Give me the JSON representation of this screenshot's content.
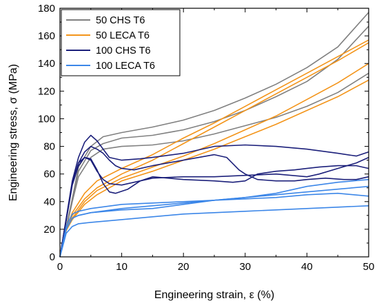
{
  "chart_data": {
    "type": "line",
    "xlabel": "Engineering strain, ε (%)",
    "ylabel": "Engineering stress, σ (MPa)",
    "xlim": [
      0,
      50
    ],
    "ylim": [
      0,
      180
    ],
    "xticks": [
      0,
      10,
      20,
      30,
      40,
      50
    ],
    "yticks": [
      0,
      20,
      40,
      60,
      80,
      100,
      120,
      140,
      160,
      180
    ],
    "grid": false,
    "legend_position": "top-left",
    "series": [
      {
        "name": "50 CHS T6",
        "color": "#808080",
        "curves": [
          [
            [
              0,
              0
            ],
            [
              2,
              42
            ],
            [
              3,
              65
            ],
            [
              5,
              80
            ],
            [
              7,
              87
            ],
            [
              10,
              90
            ],
            [
              15,
              94
            ],
            [
              20,
              99
            ],
            [
              25,
              106
            ],
            [
              30,
              115
            ],
            [
              35,
              125
            ],
            [
              40,
              137
            ],
            [
              45,
              152
            ],
            [
              50,
              177
            ]
          ],
          [
            [
              0,
              0
            ],
            [
              2,
              42
            ],
            [
              3,
              62
            ],
            [
              5,
              77
            ],
            [
              7,
              82
            ],
            [
              10,
              86
            ],
            [
              15,
              88
            ],
            [
              20,
              92
            ],
            [
              25,
              98
            ],
            [
              30,
              106
            ],
            [
              35,
              116
            ],
            [
              40,
              127
            ],
            [
              45,
              143
            ],
            [
              50,
              167
            ]
          ],
          [
            [
              0,
              0
            ],
            [
              2,
              40
            ],
            [
              3,
              58
            ],
            [
              5,
              72
            ],
            [
              7,
              78
            ],
            [
              10,
              80
            ],
            [
              15,
              81
            ],
            [
              20,
              84
            ],
            [
              25,
              89
            ],
            [
              30,
              95
            ],
            [
              35,
              101
            ],
            [
              40,
              109
            ],
            [
              45,
              119
            ],
            [
              50,
              133
            ]
          ]
        ]
      },
      {
        "name": "50 LECA T6",
        "color": "#f39419",
        "curves": [
          [
            [
              0,
              0
            ],
            [
              1,
              20
            ],
            [
              2,
              32
            ],
            [
              4,
              46
            ],
            [
              6,
              55
            ],
            [
              10,
              64
            ],
            [
              15,
              74
            ],
            [
              20,
              86
            ],
            [
              25,
              97
            ],
            [
              30,
              109
            ],
            [
              35,
              121
            ],
            [
              40,
              133
            ],
            [
              45,
              145
            ],
            [
              50,
              157
            ]
          ],
          [
            [
              0,
              0
            ],
            [
              1,
              20
            ],
            [
              2,
              30
            ],
            [
              4,
              42
            ],
            [
              6,
              50
            ],
            [
              10,
              60
            ],
            [
              15,
              70
            ],
            [
              20,
              82
            ],
            [
              25,
              94
            ],
            [
              30,
              106
            ],
            [
              35,
              118
            ],
            [
              40,
              130
            ],
            [
              45,
              142
            ],
            [
              50,
              155
            ]
          ],
          [
            [
              0,
              0
            ],
            [
              1,
              19
            ],
            [
              2,
              28
            ],
            [
              4,
              40
            ],
            [
              6,
              48
            ],
            [
              10,
              57
            ],
            [
              15,
              65
            ],
            [
              20,
              73
            ],
            [
              25,
              82
            ],
            [
              30,
              92
            ],
            [
              35,
              102
            ],
            [
              40,
              114
            ],
            [
              45,
              126
            ],
            [
              50,
              140
            ]
          ],
          [
            [
              0,
              0
            ],
            [
              1,
              19
            ],
            [
              2,
              27
            ],
            [
              4,
              38
            ],
            [
              6,
              45
            ],
            [
              10,
              55
            ],
            [
              15,
              62
            ],
            [
              20,
              70
            ],
            [
              25,
              78
            ],
            [
              30,
              87
            ],
            [
              35,
              96
            ],
            [
              40,
              106
            ],
            [
              45,
              116
            ],
            [
              50,
              128
            ]
          ]
        ]
      },
      {
        "name": "100 CHS T6",
        "color": "#1b1f7a",
        "curves": [
          [
            [
              0,
              0
            ],
            [
              2,
              55
            ],
            [
              3,
              72
            ],
            [
              4,
              83
            ],
            [
              5,
              88
            ],
            [
              6,
              84
            ],
            [
              7,
              78
            ],
            [
              8,
              72
            ],
            [
              10,
              70
            ],
            [
              13,
              71
            ],
            [
              15,
              72
            ],
            [
              20,
              75
            ],
            [
              25,
              80
            ],
            [
              30,
              81
            ],
            [
              35,
              80
            ],
            [
              40,
              78
            ],
            [
              45,
              75
            ],
            [
              48,
              73
            ],
            [
              50,
              76
            ]
          ],
          [
            [
              0,
              0
            ],
            [
              2,
              54
            ],
            [
              3,
              68
            ],
            [
              4,
              76
            ],
            [
              5,
              80
            ],
            [
              6,
              78
            ],
            [
              7,
              75
            ],
            [
              8,
              70
            ],
            [
              9,
              66
            ],
            [
              10,
              64
            ],
            [
              12,
              63
            ],
            [
              15,
              66
            ],
            [
              20,
              70
            ],
            [
              25,
              74
            ],
            [
              27,
              72
            ],
            [
              29,
              63
            ],
            [
              30,
              60
            ],
            [
              32,
              56
            ],
            [
              35,
              55
            ],
            [
              38,
              55
            ],
            [
              40,
              56
            ],
            [
              43,
              57
            ],
            [
              46,
              56
            ],
            [
              48,
              56
            ],
            [
              50,
              58
            ]
          ],
          [
            [
              0,
              0
            ],
            [
              2,
              52
            ],
            [
              3,
              66
            ],
            [
              4,
              72
            ],
            [
              5,
              71
            ],
            [
              6,
              63
            ],
            [
              7,
              53
            ],
            [
              8,
              47
            ],
            [
              9,
              46
            ],
            [
              11,
              49
            ],
            [
              13,
              55
            ],
            [
              15,
              58
            ],
            [
              20,
              56
            ],
            [
              25,
              55
            ],
            [
              28,
              54
            ],
            [
              30,
              55
            ],
            [
              32,
              60
            ],
            [
              35,
              62
            ],
            [
              38,
              63
            ],
            [
              40,
              64
            ],
            [
              42,
              65
            ],
            [
              45,
              66
            ],
            [
              48,
              66
            ],
            [
              50,
              64
            ]
          ],
          [
            [
              0,
              0
            ],
            [
              2,
              53
            ],
            [
              3,
              68
            ],
            [
              4,
              72
            ],
            [
              5,
              70
            ],
            [
              6,
              62
            ],
            [
              7,
              56
            ],
            [
              8,
              53
            ],
            [
              10,
              52
            ],
            [
              12,
              54
            ],
            [
              15,
              57
            ],
            [
              20,
              58
            ],
            [
              25,
              58
            ],
            [
              30,
              59
            ],
            [
              35,
              60
            ],
            [
              40,
              58
            ],
            [
              42,
              60
            ],
            [
              45,
              64
            ],
            [
              48,
              68
            ],
            [
              50,
              72
            ]
          ]
        ]
      },
      {
        "name": "100 LECA T6",
        "color": "#3b86e8",
        "curves": [
          [
            [
              0,
              0
            ],
            [
              1,
              22
            ],
            [
              2,
              31
            ],
            [
              3,
              33
            ],
            [
              5,
              35
            ],
            [
              10,
              38
            ],
            [
              15,
              39
            ],
            [
              20,
              40
            ],
            [
              25,
              41
            ],
            [
              30,
              43
            ],
            [
              35,
              46
            ],
            [
              40,
              51
            ],
            [
              45,
              54
            ],
            [
              50,
              56
            ]
          ],
          [
            [
              0,
              0
            ],
            [
              1,
              20
            ],
            [
              2,
              28
            ],
            [
              3,
              30
            ],
            [
              5,
              32
            ],
            [
              10,
              34
            ],
            [
              15,
              35
            ],
            [
              20,
              38
            ],
            [
              25,
              41
            ],
            [
              30,
              43
            ],
            [
              35,
              45
            ],
            [
              40,
              47
            ],
            [
              45,
              49
            ],
            [
              50,
              51
            ]
          ],
          [
            [
              0,
              0
            ],
            [
              1,
              20
            ],
            [
              2,
              28
            ],
            [
              3,
              30
            ],
            [
              5,
              32
            ],
            [
              10,
              35
            ],
            [
              15,
              37
            ],
            [
              20,
              39
            ],
            [
              25,
              41
            ],
            [
              30,
              42
            ],
            [
              35,
              43
            ],
            [
              40,
              45
            ],
            [
              45,
              46
            ],
            [
              50,
              44
            ]
          ],
          [
            [
              0,
              0
            ],
            [
              1,
              17
            ],
            [
              2,
              22
            ],
            [
              3,
              24
            ],
            [
              5,
              25
            ],
            [
              10,
              27
            ],
            [
              15,
              29
            ],
            [
              20,
              31
            ],
            [
              25,
              32
            ],
            [
              30,
              33
            ],
            [
              35,
              34
            ],
            [
              40,
              35
            ],
            [
              45,
              36
            ],
            [
              50,
              37
            ]
          ]
        ]
      }
    ]
  }
}
